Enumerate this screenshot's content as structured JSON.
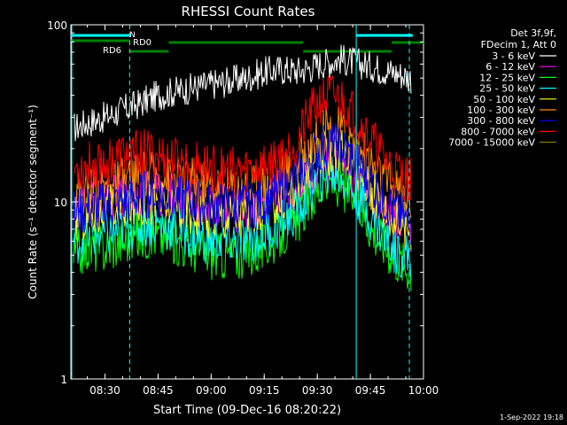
{
  "chart_data": {
    "type": "line",
    "title": "RHESSI Count Rates",
    "xlabel": "Start Time (09-Dec-16 08:20:22)",
    "ylabel": "Count Rate (s⁻¹ detector segment⁻¹)",
    "yscale": "log",
    "ylim": [
      1,
      100
    ],
    "xlim": [
      "08:20:22",
      "10:00:00"
    ],
    "x_ticks": [
      "08:30",
      "08:45",
      "09:00",
      "09:15",
      "09:30",
      "09:45",
      "10:00"
    ],
    "y_ticks": [
      "1",
      "10",
      "100"
    ],
    "footer": "1-Sep-2022 19:18",
    "info_lines": [
      "Det 3f,9f,",
      "FDecim 1, Att 0"
    ],
    "x": [
      "08:21",
      "08:25",
      "08:30",
      "08:35",
      "08:40",
      "08:45",
      "08:50",
      "08:55",
      "09:00",
      "09:05",
      "09:10",
      "09:15",
      "09:20",
      "09:25",
      "09:28",
      "09:31",
      "09:34",
      "09:37",
      "09:40",
      "09:43",
      "09:46",
      "09:49",
      "09:52",
      "09:55",
      "09:57"
    ],
    "series": [
      {
        "name": "3 - 6 keV",
        "color": "#ffffff",
        "values": [
          26,
          28,
          30,
          33,
          36,
          40,
          42,
          44,
          46,
          48,
          50,
          54,
          56,
          55,
          57,
          60,
          62,
          64,
          62,
          60,
          58,
          56,
          54,
          52,
          50
        ]
      },
      {
        "name": "6 - 12 keV",
        "color": "#ff00ff",
        "values": [
          9,
          9.5,
          10,
          11,
          11.5,
          11,
          10.5,
          10,
          9.5,
          9,
          9,
          9.5,
          10.5,
          12,
          14,
          16,
          17,
          16,
          14,
          12,
          10,
          9,
          8,
          7.5,
          7
        ]
      },
      {
        "name": "12 - 25 keV",
        "color": "#00ff00",
        "values": [
          5,
          5.5,
          5.5,
          6,
          6.5,
          6.5,
          6,
          5.5,
          5,
          5,
          5,
          5.5,
          6.5,
          8,
          10,
          12,
          13,
          12.5,
          11,
          9,
          7,
          6,
          5,
          4.5,
          4.2
        ]
      },
      {
        "name": "25 - 50 keV",
        "color": "#00ffff",
        "values": [
          6,
          6.5,
          6.5,
          7,
          7.5,
          7.5,
          7,
          6.5,
          6,
          6,
          6,
          6.5,
          7.5,
          9,
          11.5,
          13.5,
          14.5,
          14,
          12,
          10,
          8,
          6.5,
          5.5,
          5,
          4.8
        ]
      },
      {
        "name": "50 - 100 keV",
        "color": "#ffff00",
        "values": [
          8,
          8.5,
          9,
          9.5,
          10,
          10,
          9.5,
          9,
          8.5,
          8.5,
          8.5,
          9,
          10.5,
          12.5,
          15.5,
          18,
          19.5,
          19,
          17,
          14,
          11.5,
          9.5,
          8,
          7.5,
          7
        ]
      },
      {
        "name": "100 - 300 keV",
        "color": "#ff8c00",
        "values": [
          11,
          11.5,
          12,
          13,
          14,
          14,
          13.5,
          13,
          12.5,
          12,
          12,
          12.5,
          14,
          17,
          21,
          24,
          26,
          25,
          22,
          19,
          16,
          13.5,
          12,
          11,
          10.5
        ]
      },
      {
        "name": "300 - 800 keV",
        "color": "#0000ff",
        "values": [
          8.5,
          9,
          9.5,
          10,
          11,
          11,
          10.5,
          10,
          9.5,
          9.5,
          9.5,
          10,
          11.5,
          14,
          17,
          20,
          21,
          20,
          18,
          15,
          12.5,
          10.5,
          9,
          8,
          7.5
        ]
      },
      {
        "name": "800 - 7000 keV",
        "color": "#ff0000",
        "values": [
          15,
          16,
          17,
          18,
          19,
          18,
          17,
          16,
          15.5,
          15,
          15,
          16,
          18,
          23,
          30,
          37,
          40,
          38,
          33,
          27,
          22,
          18,
          15.5,
          14,
          13
        ]
      },
      {
        "name": "7000 - 15000 keV",
        "color": "#808000",
        "values": [
          null,
          null,
          null,
          null,
          null,
          null,
          null,
          null,
          null,
          null,
          null,
          null,
          null,
          null,
          null,
          null,
          null,
          null,
          null,
          null,
          null,
          null,
          null,
          null,
          null
        ]
      }
    ],
    "attenuator_bars": [
      {
        "label": "RD0",
        "color": "#008000"
      },
      {
        "label": "RD6",
        "color": "#008000"
      },
      {
        "label": "N",
        "color": "#00ffff"
      }
    ],
    "intervals": [
      "08:37",
      "09:41",
      "09:56"
    ]
  }
}
